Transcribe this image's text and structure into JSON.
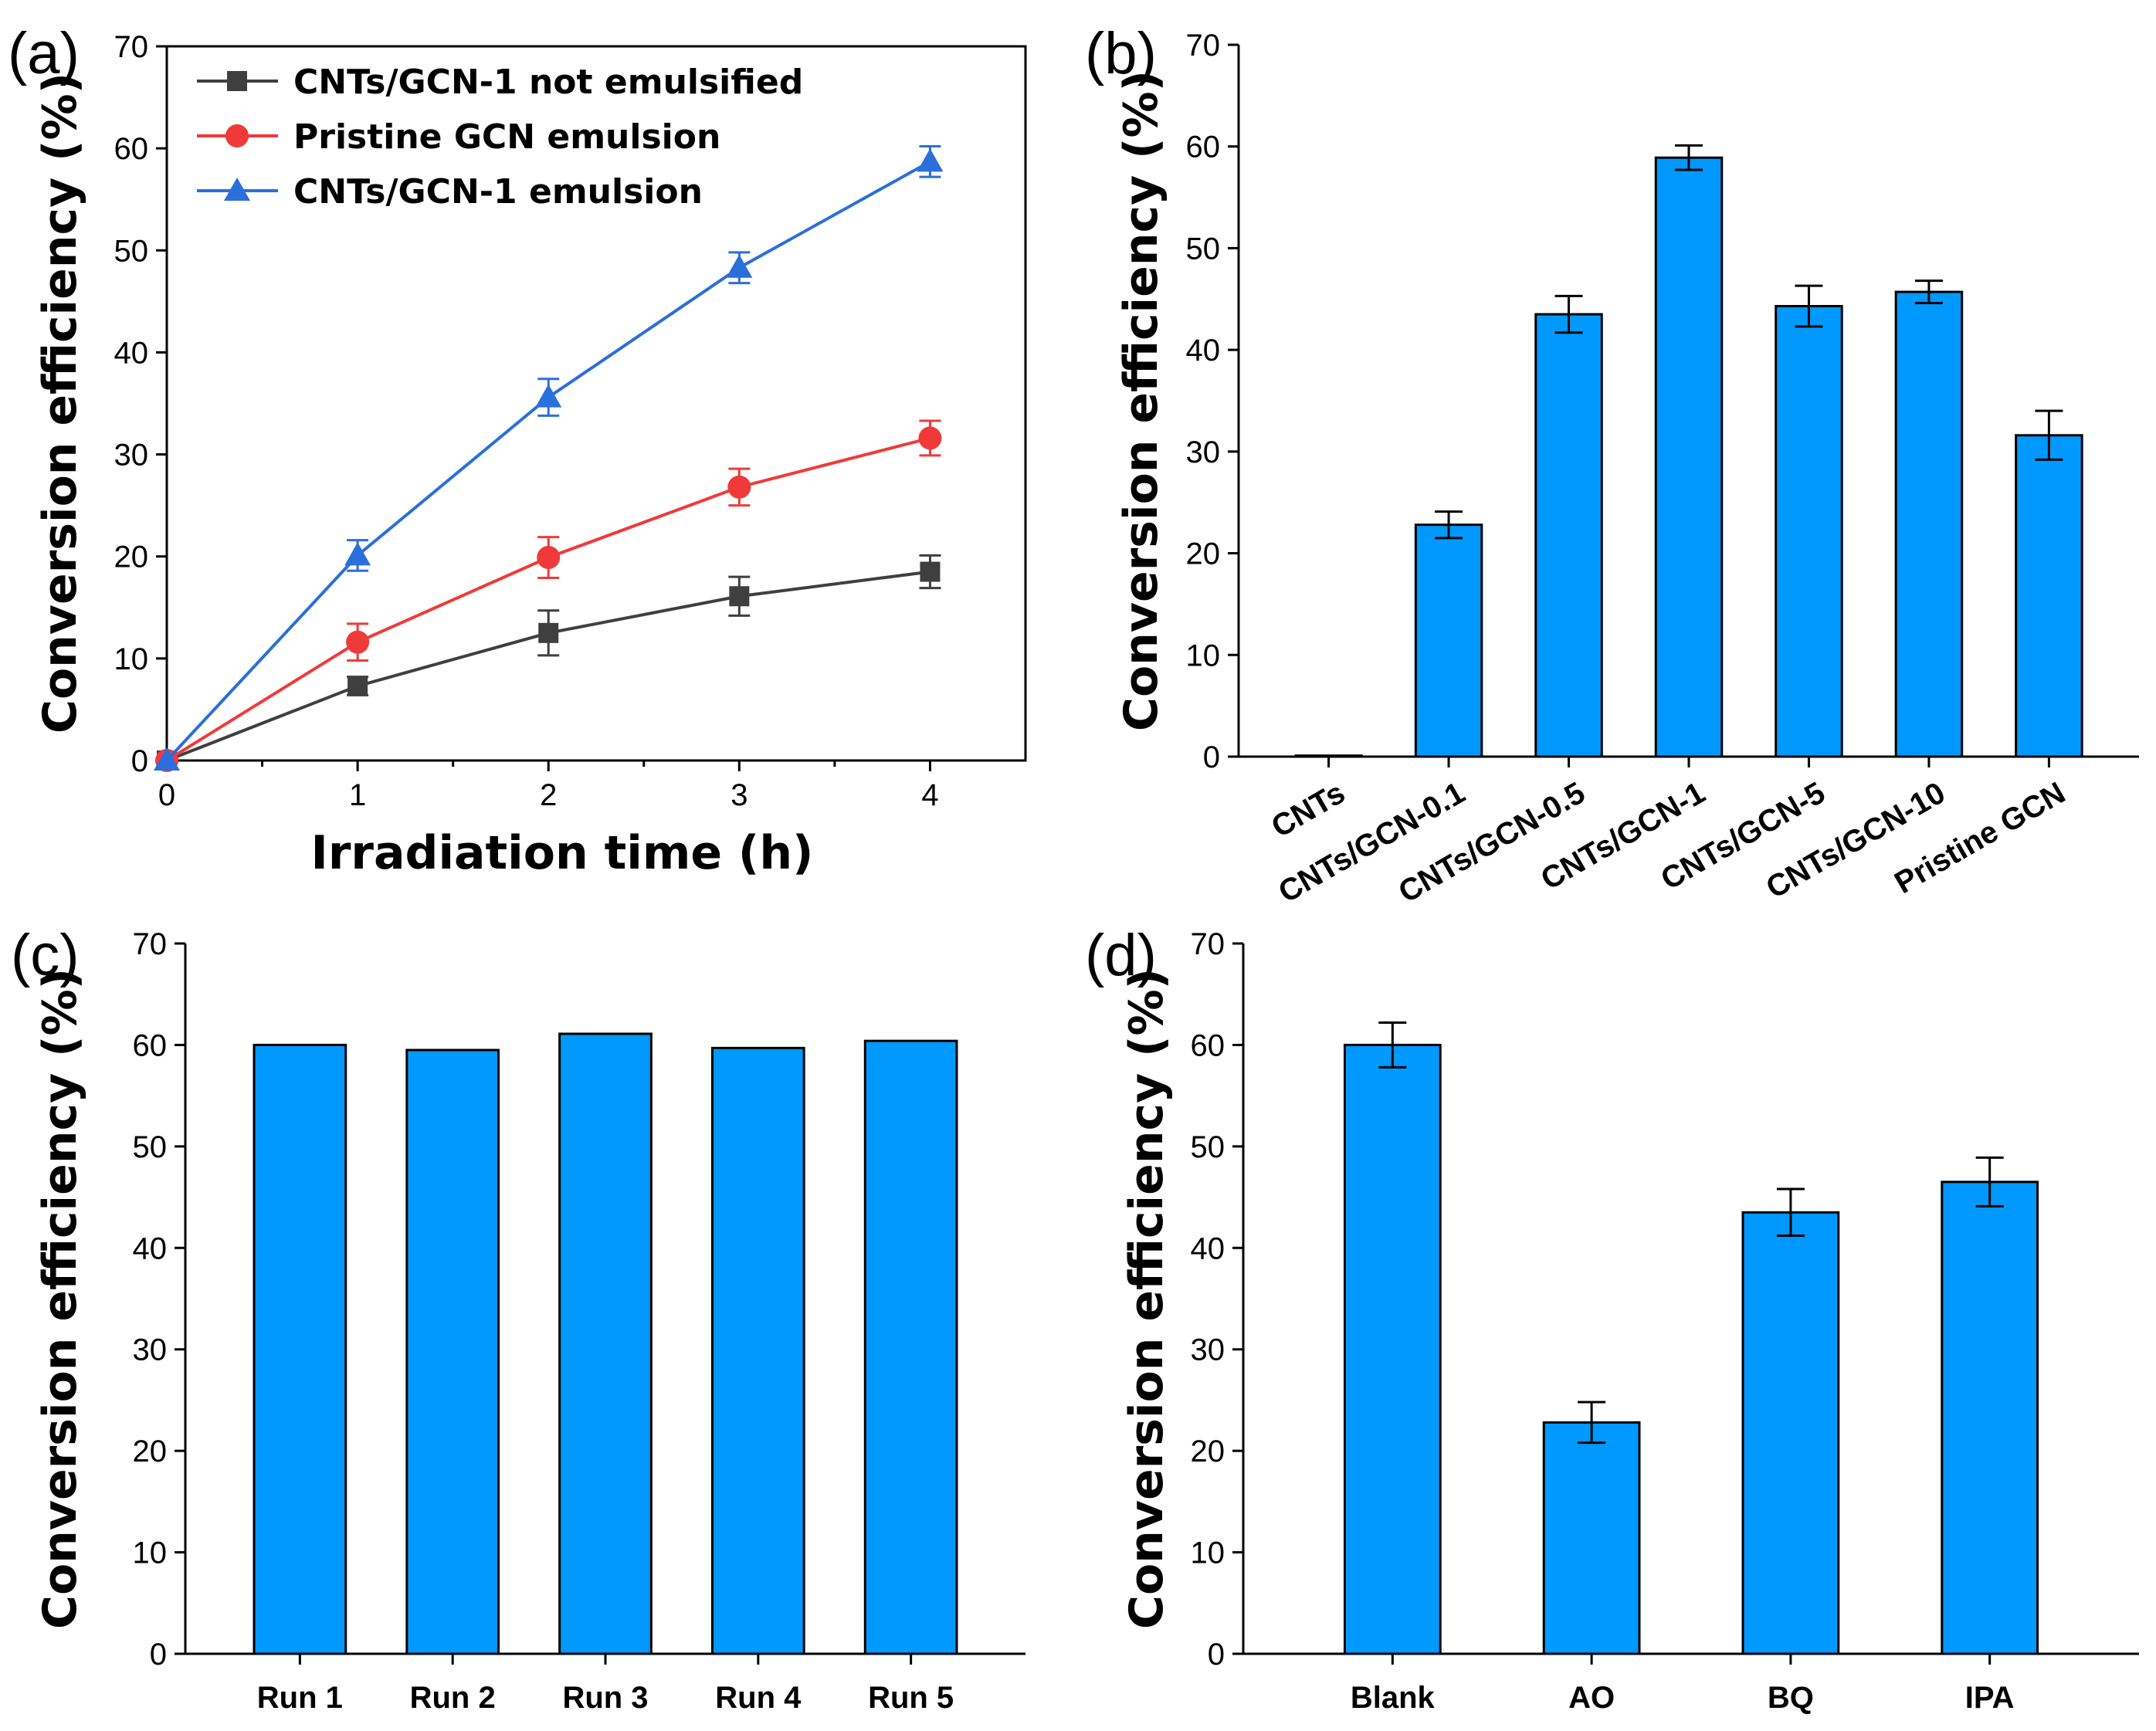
{
  "colors": {
    "bar_fill": "#0099ff",
    "gray": "#3f3f3f",
    "red": "#f03a3a",
    "blue": "#2a6fdb"
  },
  "chart_data": [
    {
      "id": "a",
      "panel_label": "(a)",
      "type": "line",
      "xlabel": "Irradiation time (h)",
      "ylabel": "Conversion efficiency (%)",
      "x": [
        0,
        1,
        2,
        3,
        4
      ],
      "xticks": [
        "0",
        "1",
        "2",
        "3",
        "4"
      ],
      "xlim": [
        0,
        4.5
      ],
      "ylim": [
        0,
        70
      ],
      "yticks": [
        "0",
        "10",
        "20",
        "30",
        "40",
        "50",
        "60",
        "70"
      ],
      "legend_position": "top-left",
      "series": [
        {
          "name": "CNTs/GCN-1 not emulsified",
          "marker": "square",
          "color": "#3f3f3f",
          "values": [
            0,
            7.3,
            12.5,
            16.1,
            18.5
          ],
          "errors": [
            0,
            0.9,
            2.2,
            1.9,
            1.6
          ]
        },
        {
          "name": "Pristine GCN emulsion",
          "marker": "circle",
          "color": "#f03a3a",
          "values": [
            0,
            11.6,
            19.9,
            26.8,
            31.6
          ],
          "errors": [
            0,
            1.8,
            2.0,
            1.8,
            1.7
          ]
        },
        {
          "name": "CNTs/GCN-1 emulsion",
          "marker": "triangle",
          "color": "#2a6fdb",
          "values": [
            0,
            20.1,
            35.6,
            48.3,
            58.7
          ],
          "errors": [
            0,
            1.5,
            1.8,
            1.5,
            1.5
          ]
        }
      ]
    },
    {
      "id": "b",
      "panel_label": "(b)",
      "type": "bar",
      "ylabel": "Conversion efficiency (%)",
      "categories": [
        "CNTs",
        "CNTs/GCN-0.1",
        "CNTs/GCN-0.5",
        "CNTs/GCN-1",
        "CNTs/GCN-5",
        "CNTs/GCN-10",
        "Pristine GCN"
      ],
      "values": [
        0.1,
        22.8,
        43.5,
        58.9,
        44.3,
        45.7,
        31.6
      ],
      "errors": [
        0,
        1.3,
        1.8,
        1.2,
        2.0,
        1.1,
        2.4
      ],
      "ylim": [
        0,
        70
      ],
      "yticks": [
        "0",
        "10",
        "20",
        "30",
        "40",
        "50",
        "60",
        "70"
      ],
      "rotated_labels": true
    },
    {
      "id": "c",
      "panel_label": "(c)",
      "type": "bar",
      "ylabel": "Conversion efficiency (%)",
      "categories": [
        "Run 1",
        "Run 2",
        "Run 3",
        "Run 4",
        "Run 5"
      ],
      "values": [
        60.0,
        59.5,
        61.1,
        59.7,
        60.4
      ],
      "errors": [
        0,
        0,
        0,
        0,
        0
      ],
      "ylim": [
        0,
        70
      ],
      "yticks": [
        "0",
        "10",
        "20",
        "30",
        "40",
        "50",
        "60",
        "70"
      ],
      "rotated_labels": false
    },
    {
      "id": "d",
      "panel_label": "(d)",
      "type": "bar",
      "ylabel": "Conversion efficiency (%)",
      "categories": [
        "Blank",
        "AO",
        "BQ",
        "IPA"
      ],
      "values": [
        60.0,
        22.8,
        43.5,
        46.5
      ],
      "errors": [
        2.2,
        2.0,
        2.3,
        2.4
      ],
      "ylim": [
        0,
        70
      ],
      "yticks": [
        "0",
        "10",
        "20",
        "30",
        "40",
        "50",
        "60",
        "70"
      ],
      "rotated_labels": false
    }
  ]
}
